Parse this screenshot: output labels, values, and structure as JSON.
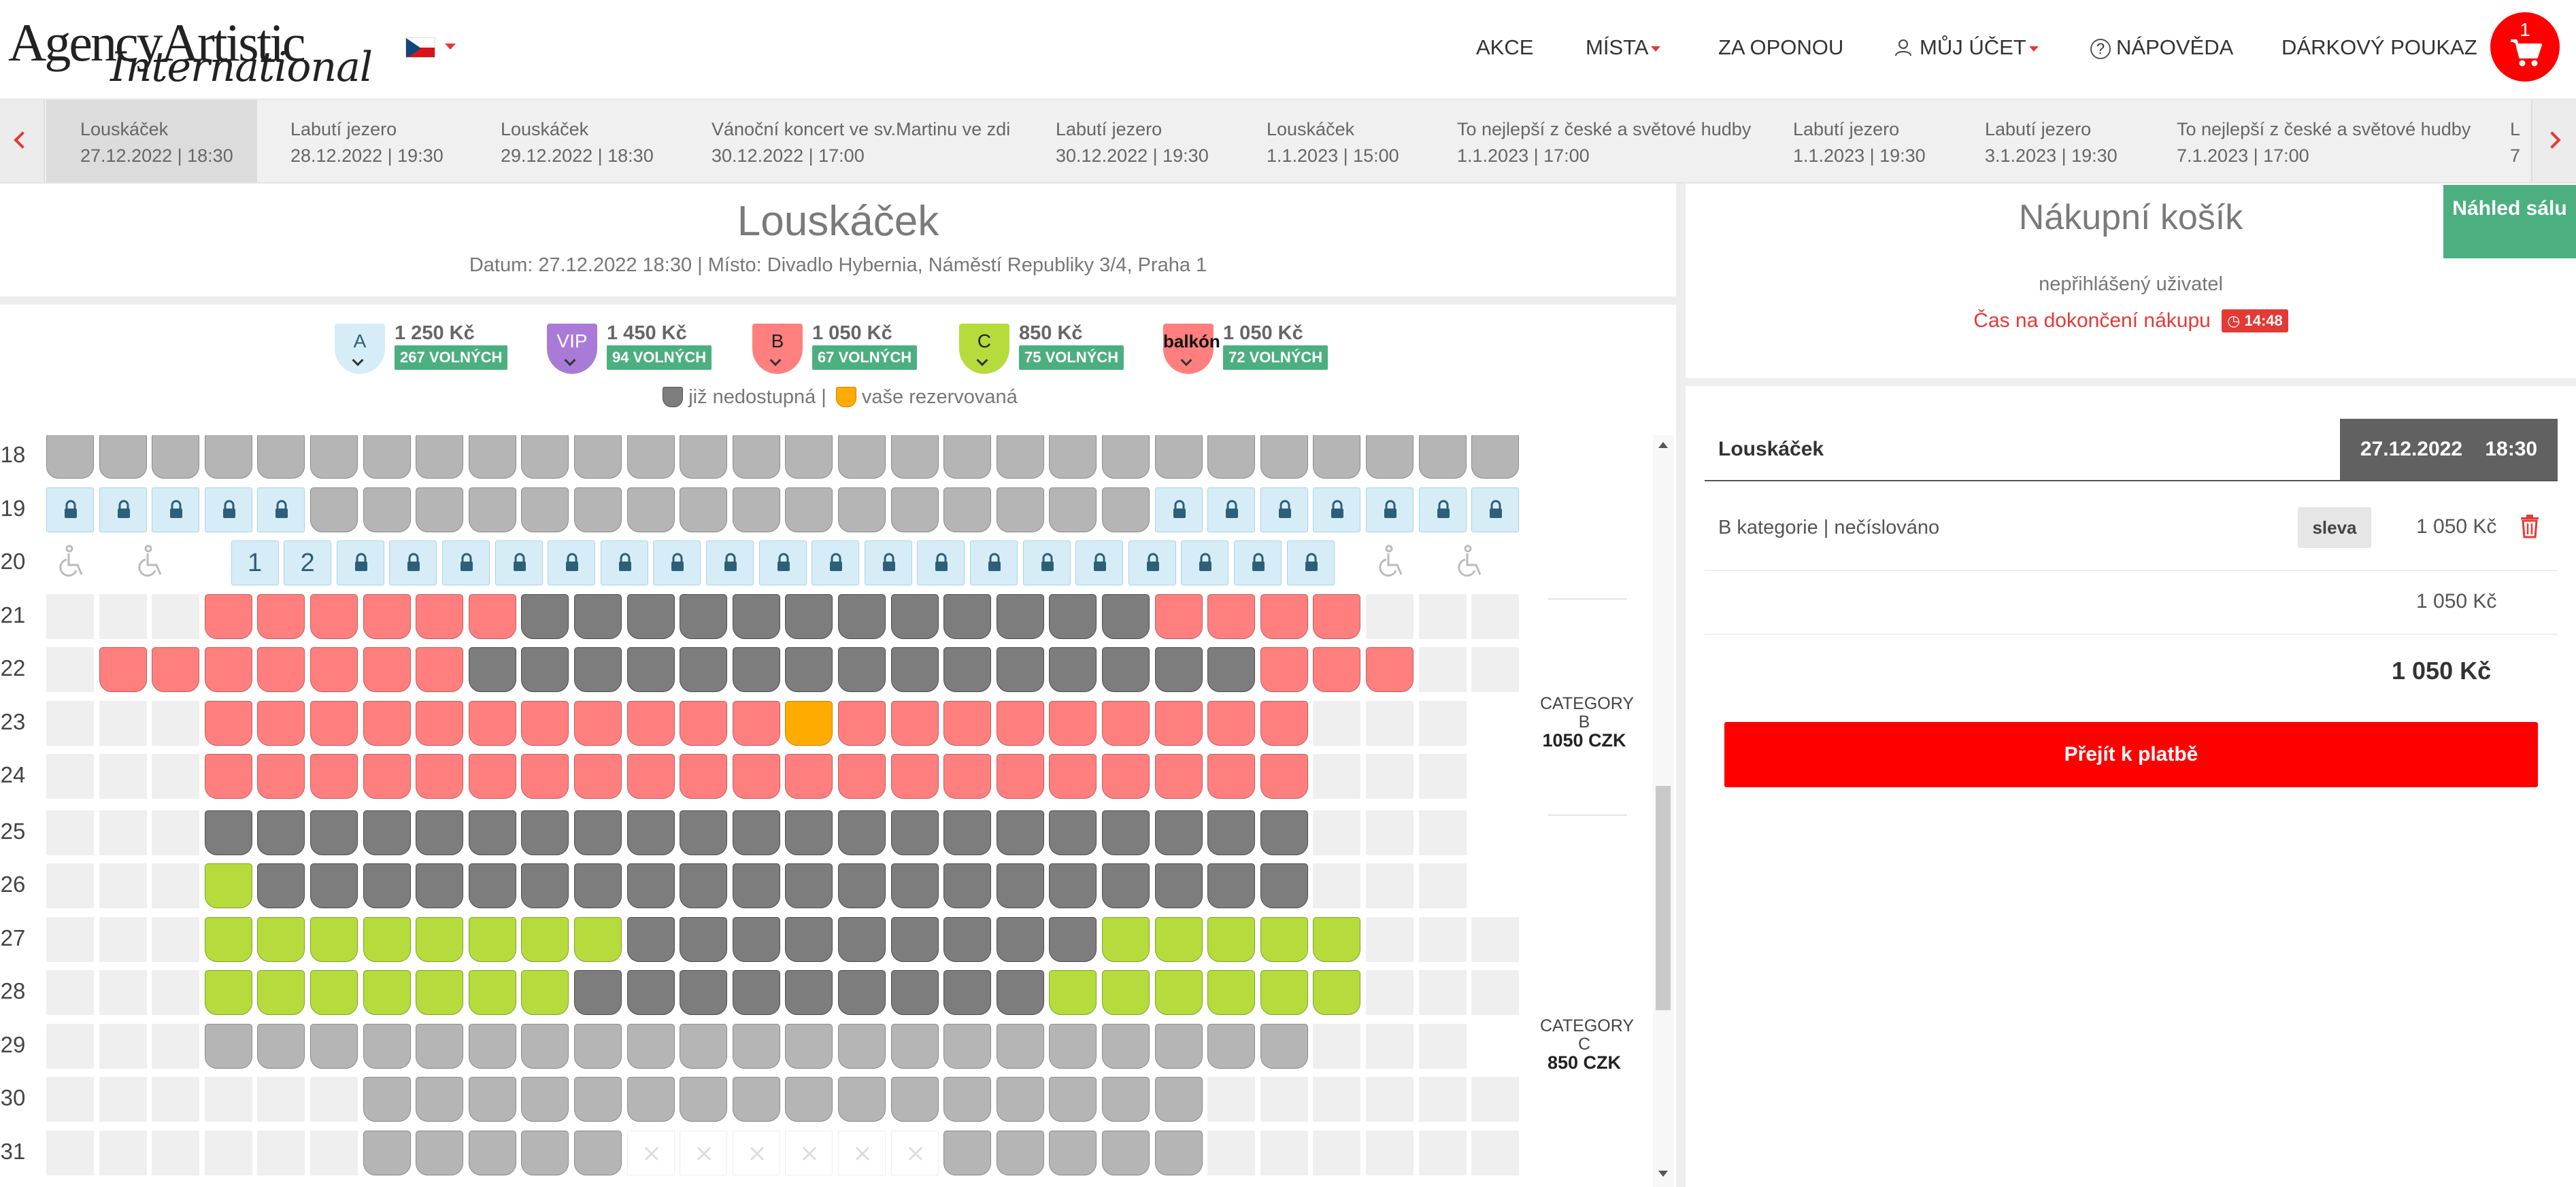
{
  "header": {
    "logo_line1": "AgencyArtistic",
    "logo_line2": "International",
    "nav": {
      "akce": "AKCE",
      "mista": "MÍSTA",
      "za_oponou": "ZA OPONOU",
      "muj_ucet": "MŮJ ÚČET",
      "napoveda": "NÁPOVĚDA",
      "darkovy_poukaz": "DÁRKOVÝ POUKAZ"
    },
    "cart_count": "1"
  },
  "events": [
    {
      "name": "Louskáček",
      "date": "27.12.2022 | 18:30"
    },
    {
      "name": "Labutí jezero",
      "date": "28.12.2022 | 19:30"
    },
    {
      "name": "Louskáček",
      "date": "29.12.2022 | 18:30"
    },
    {
      "name": "Vánoční koncert ve sv.Martinu ve zdi",
      "date": "30.12.2022 | 17:00"
    },
    {
      "name": "Labutí jezero",
      "date": "30.12.2022 | 19:30"
    },
    {
      "name": "Louskáček",
      "date": "1.1.2023 | 15:00"
    },
    {
      "name": "To nejlepší z české a světové hudby",
      "date": "1.1.2023 | 17:00"
    },
    {
      "name": "Labutí jezero",
      "date": "1.1.2023 | 19:30"
    },
    {
      "name": "Labutí jezero",
      "date": "3.1.2023 | 19:30"
    },
    {
      "name": "To nejlepší z české a světové hudby",
      "date": "7.1.2023 | 17:00"
    },
    {
      "name": "L",
      "date": "7"
    }
  ],
  "show": {
    "title": "Louskáček",
    "subtitle": "Datum: 27.12.2022 18:30 | Místo: Divadlo Hybernia, Náměstí Republiky 3/4, Praha 1"
  },
  "categories": [
    {
      "code": "A",
      "price": "1 250 Kč",
      "free": "267 VOLNÝCH",
      "color": "#d6edf7",
      "text_color": "#2d5f79"
    },
    {
      "code": "VIP",
      "price": "1 450 Kč",
      "free": "94 VOLNÝCH",
      "color": "#a97ad8",
      "text_color": "#ffffff"
    },
    {
      "code": "B",
      "price": "1 050 Kč",
      "free": "67 VOLNÝCH",
      "color": "#ff7f7f",
      "text_color": "#222222"
    },
    {
      "code": "C",
      "price": "850 Kč",
      "free": "75 VOLNÝCH",
      "color": "#b5dc3c",
      "text_color": "#222222"
    },
    {
      "code": "balkón",
      "price": "1 050 Kč",
      "free": "72 VOLNÝCH",
      "color": "#ff7f7f",
      "text_color": "#111111"
    }
  ],
  "legend": {
    "unavailable": "již nedostupná",
    "separator": "|",
    "reserved": "vaše rezervovaná"
  },
  "seatmap": {
    "rows": [
      {
        "label": "18",
        "seats": "GGGGGGGGGGGGGGGGGGGGGGGGGGGG"
      },
      {
        "label": "19",
        "seats": "LLLLLGGGGGGGGGGGGGGGGLLLLLLL"
      },
      {
        "label": "20",
        "seats": "W.W..12LLLLLLLLLLLLLLLLLLL.W.W"
      },
      {
        "label": "21",
        "seats": "EEEPPPPPPDDDDDDDDDDDDPPPPEEE"
      },
      {
        "label": "22",
        "seats": "EPPPPPPPDDDDDDDDDDDDDDDPPPEE"
      },
      {
        "label": "23",
        "seats": "EEEPPPPPPPPPPPOPPPPPPPPPEEE"
      },
      {
        "label": "24",
        "seats": "EEEPPPPPPPPPPPPPPPPPPPPPEEE"
      },
      {
        "label": "25",
        "seats": "EEEDDDDDDDDDDDDDDDDDDDDDEEE"
      },
      {
        "label": "26",
        "seats": "EEEQDDDDDDDDDDDDDDDDDDDDEEE"
      },
      {
        "label": "27",
        "seats": "EEEQQQQQQQQDDDDDDDDDQQQQQEEE"
      },
      {
        "label": "28",
        "seats": "EEEQQQQQQQDDDDDDDDDQQQQQQEEE"
      },
      {
        "label": "29",
        "seats": "EEEGGGGGGGGGGGGGGGGGGGGGEEE"
      },
      {
        "label": "30",
        "seats": "EEEEEEGGGGGGGGGGGGGGGGEEEEEEE"
      },
      {
        "label": "31",
        "seats": "EEEEEEGGGGGXXXXXXGGGGGEEEEEE"
      }
    ],
    "category_labels": [
      {
        "line1": "CATEGORY B",
        "line2": "1050 CZK"
      },
      {
        "line1": "CATEGORY C",
        "line2": "850 CZK"
      }
    ]
  },
  "cart": {
    "title": "Nákupní košík",
    "preview_button": "Náhled sálu",
    "user_status": "nepřihlášený uživatel",
    "timer_label": "Čas na dokončení nákupu",
    "timer_value": "14:48",
    "order": {
      "event_name": "Louskáček",
      "date": "27.12.2022",
      "time": "18:30",
      "item_desc": "B kategorie | nečíslováno",
      "discount_label": "sleva",
      "item_price": "1 050 Kč",
      "subtotal": "1 050 Kč",
      "total": "1 050 Kč"
    },
    "pay_button": "Přejít k platbě"
  }
}
